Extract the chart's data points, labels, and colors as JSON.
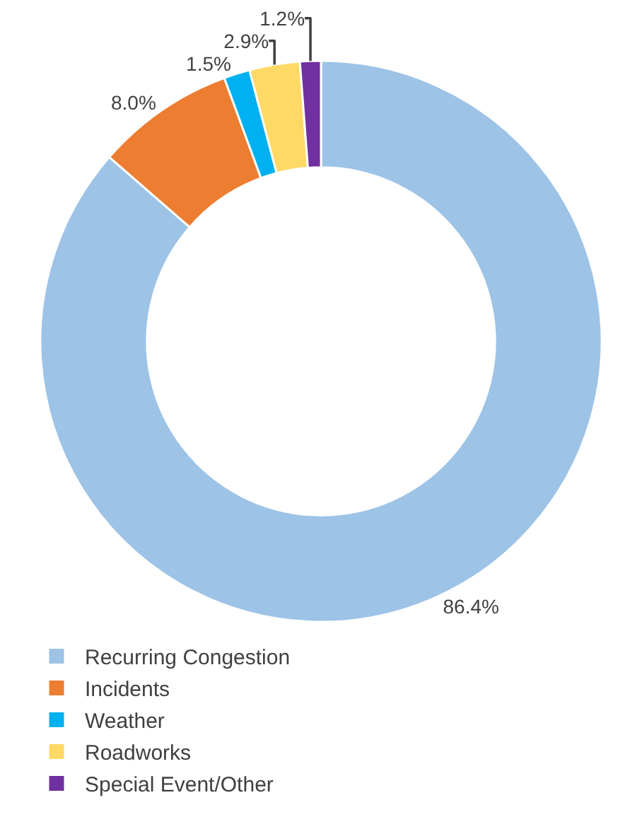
{
  "chart_data": {
    "type": "donut",
    "categories": [
      "Recurring Congestion",
      "Incidents",
      "Weather",
      "Roadworks",
      "Special Event/Other"
    ],
    "values": [
      86.4,
      8.0,
      1.5,
      2.9,
      1.2
    ],
    "colors": [
      "#9dc3e6",
      "#ed7d31",
      "#00b0f0",
      "#ffd966",
      "#7030a0"
    ],
    "value_labels": [
      "86.4%",
      "8.0%",
      "1.5%",
      "2.9%",
      "1.2%"
    ],
    "legend": "bottom"
  }
}
